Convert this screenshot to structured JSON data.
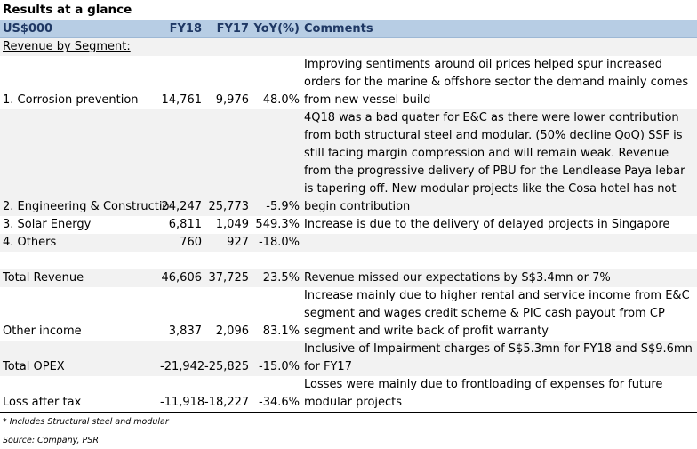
{
  "title": "Results at a glance",
  "header": {
    "label": "US$000",
    "fy18": "FY18",
    "fy17": "FY17",
    "yoy": "YoY(%)",
    "comments": "Comments"
  },
  "section_label": "Revenue by Segment:",
  "rows": [
    {
      "label": "1. Corrosion prevention",
      "fy18": "14,761",
      "fy17": "9,976",
      "yoy": "48.0%",
      "comment": "Improving sentiments around oil prices helped spur increased orders for the marine & offshore sector the demand mainly comes from new vessel build"
    },
    {
      "label": "2. Engineering & Constructio",
      "fy18": "24,247",
      "fy17": "25,773",
      "yoy": "-5.9%",
      "comment": "4Q18 was a bad quater for E&C as there were lower contribution from both structural steel and modular. (50% decline QoQ) SSF is still facing margin compression and will remain weak. Revenue from the progressive delivery of PBU for the Lendlease Paya lebar is tapering off. New modular projects like the Cosa hotel has not begin contribution"
    },
    {
      "label": "3. Solar Energy",
      "fy18": "6,811",
      "fy17": "1,049",
      "yoy": "549.3%",
      "comment": "Increase is due to the delivery of delayed projects in Singapore"
    },
    {
      "label": "4. Others",
      "fy18": "760",
      "fy17": "927",
      "yoy": "-18.0%",
      "comment": ""
    },
    {
      "label": "Total Revenue",
      "fy18": "46,606",
      "fy17": "37,725",
      "yoy": "23.5%",
      "comment": "Revenue missed our expectations by S$3.4mn or 7%"
    },
    {
      "label": "Other income",
      "fy18": "3,837",
      "fy17": "2,096",
      "yoy": "83.1%",
      "comment": "Increase mainly due to higher rental and service income from E&C segment and wages credit scheme & PIC cash payout from CP segment and write back of profit warranty"
    },
    {
      "label": "Total OPEX",
      "fy18": "-21,942",
      "fy17": "-25,825",
      "yoy": "-15.0%",
      "comment": "Inclusive of Impairment charges of  S$5.3mn for FY18 and S$9.6mn for FY17"
    },
    {
      "label": "Loss after tax",
      "fy18": "-11,918",
      "fy17": "-18,227",
      "yoy": "-34.6%",
      "comment": "Losses were mainly due to frontloading of expenses for future modular projects"
    }
  ],
  "footnote": "* Includes Structural steel and modular",
  "source": "Source: Company, PSR",
  "colors": {
    "header_bg": "#b7cde4",
    "header_text": "#1f3864",
    "alt_row": "#f2f2f2"
  }
}
